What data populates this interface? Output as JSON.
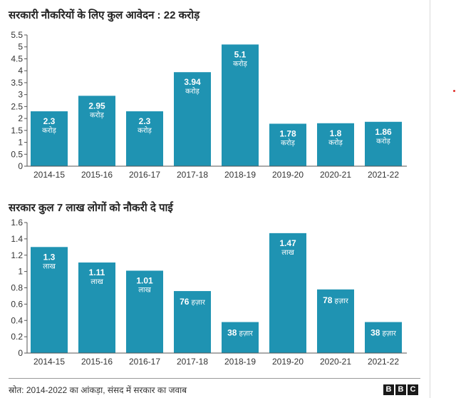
{
  "colors": {
    "bar": "#1f93b2",
    "axis": "#555555",
    "grid": "#dddddd"
  },
  "chart_data": [
    {
      "type": "bar",
      "title": "सरकारी नौकरियों के लिए कुल आवेदन : 22 करोड़",
      "categories": [
        "2014-15",
        "2015-16",
        "2016-17",
        "2017-18",
        "2018-19",
        "2019-20",
        "2020-21",
        "2021-22"
      ],
      "values": [
        2.3,
        2.95,
        2.3,
        3.94,
        5.1,
        1.78,
        1.8,
        1.86
      ],
      "labels": [
        "2.3",
        "2.95",
        "2.3",
        "3.94",
        "5.1",
        "1.78",
        "1.8",
        "1.86"
      ],
      "units": [
        "करोड़",
        "करोड़",
        "करोड़",
        "करोड़",
        "करोड़",
        "करोड़",
        "करोड़",
        "करोड़"
      ],
      "yticks": [
        "0",
        "0.5",
        "1",
        "1.5",
        "2",
        "2.5",
        "3",
        "3.5",
        "4",
        "4.5",
        "5",
        "5.5"
      ],
      "ylim": [
        0,
        5.5
      ],
      "grid": false
    },
    {
      "type": "bar",
      "title": "सरकार कुल 7 लाख लोगों को नौकरी दे पाई",
      "categories": [
        "2014-15",
        "2015-16",
        "2016-17",
        "2017-18",
        "2018-19",
        "2019-20",
        "2020-21",
        "2021-22"
      ],
      "values": [
        1.3,
        1.11,
        1.01,
        0.76,
        0.38,
        1.47,
        0.78,
        0.38
      ],
      "labels": [
        "1.3",
        "1.11",
        "1.01",
        "76",
        "38",
        "1.47",
        "78",
        "38"
      ],
      "units": [
        "लाख",
        "लाख",
        "लाख",
        "हज़ार",
        "हज़ार",
        "लाख",
        "हज़ार",
        "हज़ार"
      ],
      "yticks": [
        "0",
        "0.2",
        "0.4",
        "0.6",
        "0.8",
        "1",
        "1.2",
        "1.4",
        "1.6"
      ],
      "ylim": [
        0,
        1.6
      ],
      "grid": false
    }
  ],
  "footer": {
    "source": "स्रोत: 2014-2022 का आंकड़ा, संसद में सरकार का जवाब",
    "logo": [
      "B",
      "B",
      "C"
    ]
  }
}
